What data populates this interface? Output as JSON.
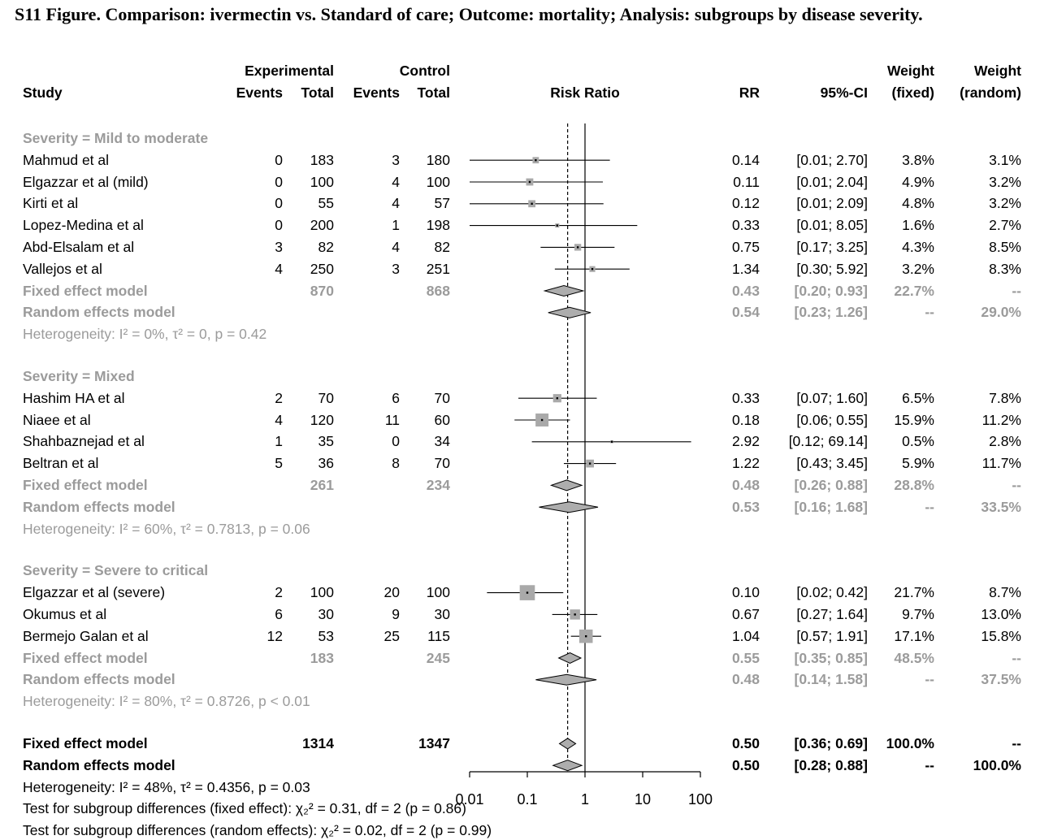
{
  "title": "S11 Figure. Comparison: ivermectin vs. Standard of care; Outcome: mortality; Analysis: subgroups by disease severity.",
  "header": {
    "study": "Study",
    "experimental": "Experimental",
    "control": "Control",
    "exp_events": "Events",
    "exp_total": "Total",
    "ctrl_events": "Events",
    "ctrl_total": "Total",
    "risk_ratio": "Risk Ratio",
    "rr": "RR",
    "ci": "95%-CI",
    "weight_fixed_top": "Weight",
    "weight_fixed_bottom": "(fixed)",
    "weight_random_top": "Weight",
    "weight_random_bottom": "(random)"
  },
  "chart_data": {
    "type": "forest",
    "effect_measure": "Risk Ratio",
    "x_axis": {
      "scale": "log",
      "ticks": [
        "0.01",
        "0.1",
        "1",
        "10",
        "100"
      ],
      "tick_values": [
        0.01,
        0.1,
        1,
        10,
        100
      ],
      "ref_line": 1,
      "dashed_ref_line": 0.5
    },
    "subgroups": [
      {
        "label": "Severity = Mild to moderate",
        "studies": [
          {
            "name": "Mahmud et al",
            "events_exp": "0",
            "total_exp": "183",
            "events_ctrl": "3",
            "total_ctrl": "180",
            "rr": "0.14",
            "ci": "[0.01; 2.70]",
            "ci_low": 0.01,
            "ci_high": 2.7,
            "weight_fixed": "3.8%",
            "weight_random": "3.1%"
          },
          {
            "name": "Elgazzar et al (mild)",
            "events_exp": "0",
            "total_exp": "100",
            "events_ctrl": "4",
            "total_ctrl": "100",
            "rr": "0.11",
            "ci": "[0.01; 2.04]",
            "ci_low": 0.01,
            "ci_high": 2.04,
            "weight_fixed": "4.9%",
            "weight_random": "3.2%"
          },
          {
            "name": "Kirti et al",
            "events_exp": "0",
            "total_exp": "55",
            "events_ctrl": "4",
            "total_ctrl": "57",
            "rr": "0.12",
            "ci": "[0.01; 2.09]",
            "ci_low": 0.01,
            "ci_high": 2.09,
            "weight_fixed": "4.8%",
            "weight_random": "3.2%"
          },
          {
            "name": "Lopez-Medina et al",
            "events_exp": "0",
            "total_exp": "200",
            "events_ctrl": "1",
            "total_ctrl": "198",
            "rr": "0.33",
            "ci": "[0.01; 8.05]",
            "ci_low": 0.01,
            "ci_high": 8.05,
            "weight_fixed": "1.6%",
            "weight_random": "2.7%"
          },
          {
            "name": "Abd-Elsalam et al",
            "events_exp": "3",
            "total_exp": "82",
            "events_ctrl": "4",
            "total_ctrl": "82",
            "rr": "0.75",
            "ci": "[0.17; 3.25]",
            "ci_low": 0.17,
            "ci_high": 3.25,
            "weight_fixed": "4.3%",
            "weight_random": "8.5%"
          },
          {
            "name": "Vallejos et al",
            "events_exp": "4",
            "total_exp": "250",
            "events_ctrl": "3",
            "total_ctrl": "251",
            "rr": "1.34",
            "ci": "[0.30; 5.92]",
            "ci_low": 0.3,
            "ci_high": 5.92,
            "weight_fixed": "3.2%",
            "weight_random": "8.3%"
          }
        ],
        "fixed": {
          "label": "Fixed effect model",
          "total_exp": "870",
          "total_ctrl": "868",
          "rr": "0.43",
          "ci": "[0.20; 0.93]",
          "ci_low": 0.2,
          "ci_high": 0.93,
          "weight_fixed": "22.7%",
          "weight_random": "--"
        },
        "random": {
          "label": "Random effects model",
          "rr": "0.54",
          "ci": "[0.23; 1.26]",
          "ci_low": 0.23,
          "ci_high": 1.26,
          "weight_fixed": "--",
          "weight_random": "29.0%"
        },
        "heterogeneity": "Heterogeneity: I² = 0%, τ² = 0, p = 0.42"
      },
      {
        "label": "Severity = Mixed",
        "studies": [
          {
            "name": "Hashim HA et al",
            "events_exp": "2",
            "total_exp": "70",
            "events_ctrl": "6",
            "total_ctrl": "70",
            "rr": "0.33",
            "ci": "[0.07; 1.60]",
            "ci_low": 0.07,
            "ci_high": 1.6,
            "weight_fixed": "6.5%",
            "weight_random": "7.8%"
          },
          {
            "name": "Niaee et al",
            "events_exp": "4",
            "total_exp": "120",
            "events_ctrl": "11",
            "total_ctrl": "60",
            "rr": "0.18",
            "ci": "[0.06; 0.55]",
            "ci_low": 0.06,
            "ci_high": 0.55,
            "weight_fixed": "15.9%",
            "weight_random": "11.2%"
          },
          {
            "name": "Shahbaznejad et al",
            "events_exp": "1",
            "total_exp": "35",
            "events_ctrl": "0",
            "total_ctrl": "34",
            "rr": "2.92",
            "ci": "[0.12; 69.14]",
            "ci_low": 0.12,
            "ci_high": 69.14,
            "weight_fixed": "0.5%",
            "weight_random": "2.8%"
          },
          {
            "name": "Beltran et al",
            "events_exp": "5",
            "total_exp": "36",
            "events_ctrl": "8",
            "total_ctrl": "70",
            "rr": "1.22",
            "ci": "[0.43; 3.45]",
            "ci_low": 0.43,
            "ci_high": 3.45,
            "weight_fixed": "5.9%",
            "weight_random": "11.7%"
          }
        ],
        "fixed": {
          "label": "Fixed effect model",
          "total_exp": "261",
          "total_ctrl": "234",
          "rr": "0.48",
          "ci": "[0.26; 0.88]",
          "ci_low": 0.26,
          "ci_high": 0.88,
          "weight_fixed": "28.8%",
          "weight_random": "--"
        },
        "random": {
          "label": "Random effects model",
          "rr": "0.53",
          "ci": "[0.16; 1.68]",
          "ci_low": 0.16,
          "ci_high": 1.68,
          "weight_fixed": "--",
          "weight_random": "33.5%"
        },
        "heterogeneity": "Heterogeneity: I² = 60%, τ² = 0.7813, p = 0.06"
      },
      {
        "label": "Severity = Severe to critical",
        "studies": [
          {
            "name": "Elgazzar et al (severe)",
            "events_exp": "2",
            "total_exp": "100",
            "events_ctrl": "20",
            "total_ctrl": "100",
            "rr": "0.10",
            "ci": "[0.02; 0.42]",
            "ci_low": 0.02,
            "ci_high": 0.42,
            "weight_fixed": "21.7%",
            "weight_random": "8.7%"
          },
          {
            "name": "Okumus et al",
            "events_exp": "6",
            "total_exp": "30",
            "events_ctrl": "9",
            "total_ctrl": "30",
            "rr": "0.67",
            "ci": "[0.27; 1.64]",
            "ci_low": 0.27,
            "ci_high": 1.64,
            "weight_fixed": "9.7%",
            "weight_random": "13.0%"
          },
          {
            "name": "Bermejo Galan et al",
            "events_exp": "12",
            "total_exp": "53",
            "events_ctrl": "25",
            "total_ctrl": "115",
            "rr": "1.04",
            "ci": "[0.57; 1.91]",
            "ci_low": 0.57,
            "ci_high": 1.91,
            "weight_fixed": "17.1%",
            "weight_random": "15.8%"
          }
        ],
        "fixed": {
          "label": "Fixed effect model",
          "total_exp": "183",
          "total_ctrl": "245",
          "rr": "0.55",
          "ci": "[0.35; 0.85]",
          "ci_low": 0.35,
          "ci_high": 0.85,
          "weight_fixed": "48.5%",
          "weight_random": "--"
        },
        "random": {
          "label": "Random effects model",
          "rr": "0.48",
          "ci": "[0.14; 1.58]",
          "ci_low": 0.14,
          "ci_high": 1.58,
          "weight_fixed": "--",
          "weight_random": "37.5%"
        },
        "heterogeneity": "Heterogeneity: I² = 80%, τ² = 0.8726, p < 0.01"
      }
    ],
    "overall": {
      "fixed": {
        "label": "Fixed effect model",
        "total_exp": "1314",
        "total_ctrl": "1347",
        "rr": "0.50",
        "ci": "[0.36; 0.69]",
        "ci_low": 0.36,
        "ci_high": 0.69,
        "weight_fixed": "100.0%",
        "weight_random": "--"
      },
      "random": {
        "label": "Random effects model",
        "rr": "0.50",
        "ci": "[0.28; 0.88]",
        "ci_low": 0.28,
        "ci_high": 0.88,
        "weight_fixed": "--",
        "weight_random": "100.0%"
      },
      "heterogeneity": "Heterogeneity: I² = 48%, τ² = 0.4356, p = 0.03",
      "test_fixed": "Test for subgroup differences (fixed effect): χ₂² = 0.31, df = 2 (p = 0.86)",
      "test_random": "Test for subgroup differences (random effects): χ₂² = 0.02, df = 2 (p = 0.99)"
    }
  }
}
